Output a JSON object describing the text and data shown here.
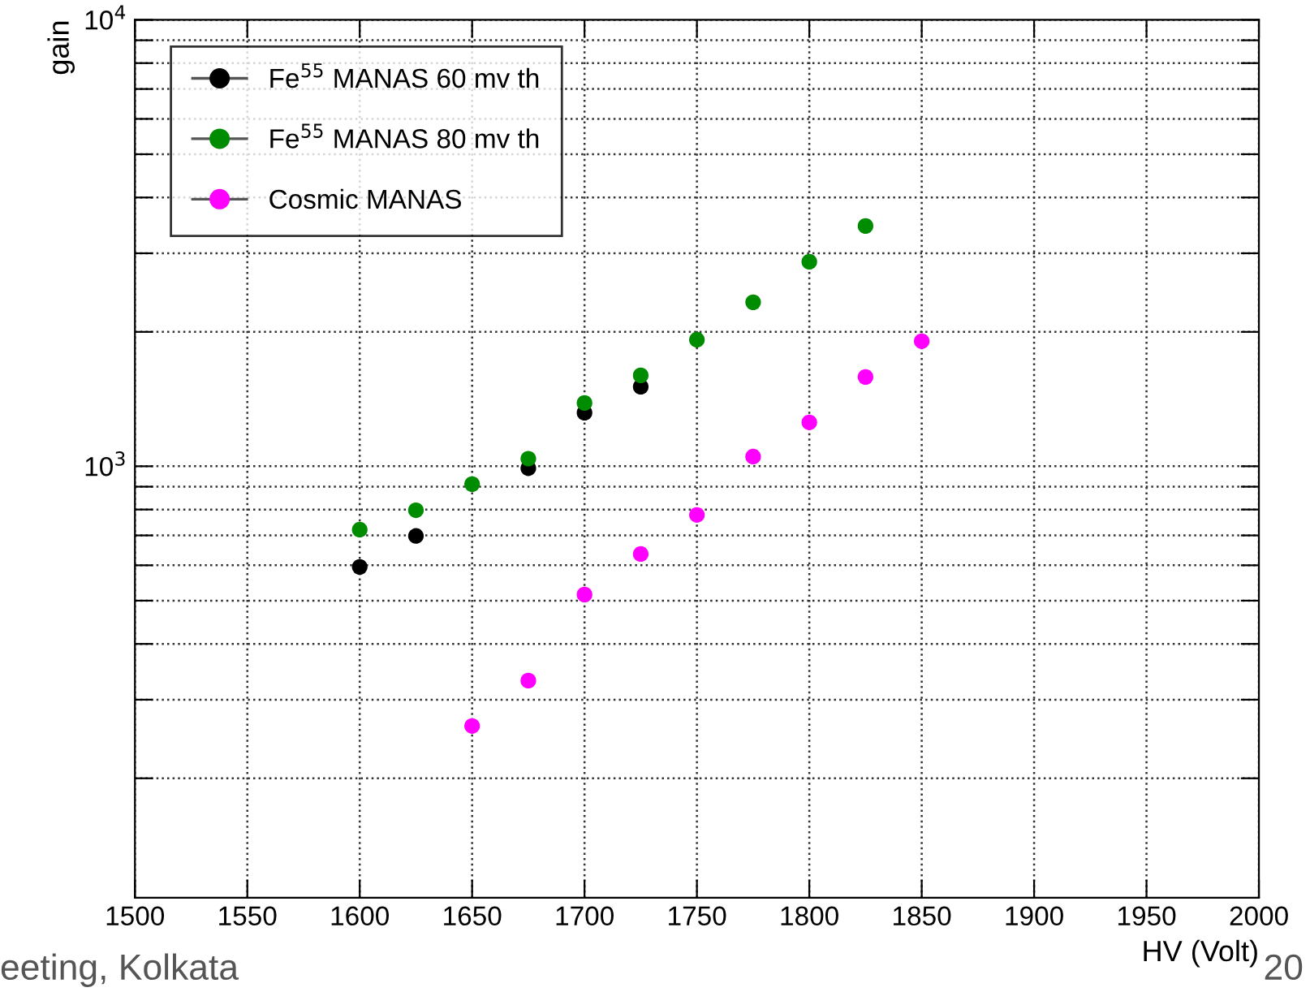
{
  "chart_data": {
    "type": "scatter",
    "xlabel": "HV (Volt)",
    "ylabel": "gain",
    "series": [
      {
        "name": "Fe$^{55}$ MANAS 60 mv th",
        "color": "#000000",
        "x": [
          1600,
          1625,
          1675,
          1700,
          1725
        ],
        "values": [
          595,
          698,
          990,
          1318,
          1507
        ]
      },
      {
        "name": "Fe$^{55}$ MANAS 80 mv th",
        "color": "#008c00",
        "x": [
          1600,
          1625,
          1650,
          1675,
          1700,
          1725,
          1750,
          1775,
          1800,
          1825
        ],
        "values": [
          721,
          797,
          912,
          1040,
          1386,
          1598,
          1921,
          2330,
          2872,
          3453
        ]
      },
      {
        "name": "Cosmic MANAS",
        "color": "#ff00ff",
        "x": [
          1650,
          1675,
          1700,
          1725,
          1750,
          1775,
          1800,
          1825,
          1850
        ],
        "values": [
          262,
          331,
          516,
          636,
          778,
          1051,
          1254,
          1585,
          1906
        ]
      }
    ],
    "xlim": [
      1500,
      2000
    ],
    "xticks": [
      1500,
      1550,
      1600,
      1650,
      1700,
      1750,
      1800,
      1850,
      1900,
      1950,
      2000
    ],
    "ylim": [
      108,
      10000
    ],
    "log": "y",
    "yticks": [
      {
        "value": 200,
        "label": null
      },
      {
        "value": 300,
        "label": null
      },
      {
        "value": 400,
        "label": null
      },
      {
        "value": 500,
        "label": null
      },
      {
        "value": 600,
        "label": null
      },
      {
        "value": 700,
        "label": null
      },
      {
        "value": 800,
        "label": null
      },
      {
        "value": 900,
        "label": null
      },
      {
        "value": 1000,
        "label": "10$^{3}$"
      },
      {
        "value": 2000,
        "label": null
      },
      {
        "value": 3000,
        "label": null
      },
      {
        "value": 4000,
        "label": null
      },
      {
        "value": 5000,
        "label": null
      },
      {
        "value": 6000,
        "label": null
      },
      {
        "value": 7000,
        "label": null
      },
      {
        "value": 8000,
        "label": null
      },
      {
        "value": 9000,
        "label": null
      },
      {
        "value": 10000,
        "label": "10$^{4}$"
      }
    ],
    "grid": true,
    "legend": "top left",
    "marker": "circle",
    "annotations": [
      "eeting, Kolkata",
      "20"
    ]
  }
}
